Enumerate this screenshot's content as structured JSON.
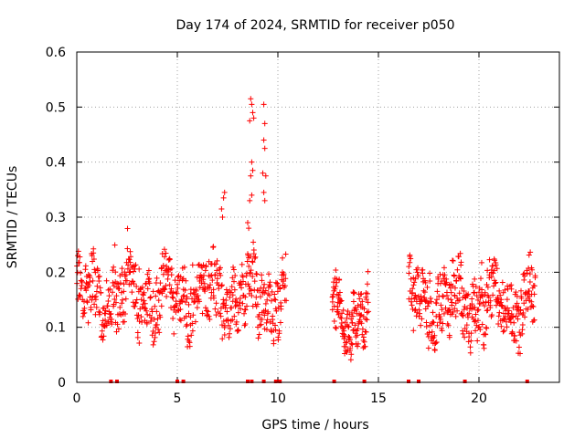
{
  "chart_data": {
    "type": "scatter",
    "title": "Day 174 of 2024, SRMTID for receiver p050",
    "xlabel": "GPS time / hours",
    "ylabel": "SRMTID / TECUs",
    "xlim": [
      0,
      24
    ],
    "ylim": [
      0,
      0.6
    ],
    "xticks": [
      0,
      5,
      10,
      15,
      20
    ],
    "yticks": [
      0,
      0.1,
      0.2,
      0.3,
      0.4,
      0.5,
      0.6
    ],
    "grid": true,
    "marker": "+",
    "color": "#ff0000",
    "segments": [
      {
        "x_start": 0.0,
        "x_end": 10.4,
        "mean": 0.155,
        "amp": 0.05,
        "count": 650
      },
      {
        "x_start": 12.7,
        "x_end": 14.5,
        "mean": 0.12,
        "amp": 0.045,
        "count": 140
      },
      {
        "x_start": 16.5,
        "x_end": 22.8,
        "mean": 0.145,
        "amp": 0.05,
        "count": 430
      }
    ],
    "peaks": [
      {
        "x": 8.65,
        "y": 0.515
      },
      {
        "x": 8.7,
        "y": 0.505
      },
      {
        "x": 8.75,
        "y": 0.49
      },
      {
        "x": 8.6,
        "y": 0.475
      },
      {
        "x": 8.8,
        "y": 0.48
      },
      {
        "x": 8.7,
        "y": 0.4
      },
      {
        "x": 8.75,
        "y": 0.385
      },
      {
        "x": 8.65,
        "y": 0.375
      },
      {
        "x": 8.6,
        "y": 0.33
      },
      {
        "x": 8.7,
        "y": 0.34
      },
      {
        "x": 9.3,
        "y": 0.505
      },
      {
        "x": 9.35,
        "y": 0.47
      },
      {
        "x": 9.3,
        "y": 0.44
      },
      {
        "x": 9.35,
        "y": 0.425
      },
      {
        "x": 9.25,
        "y": 0.38
      },
      {
        "x": 9.4,
        "y": 0.375
      },
      {
        "x": 9.3,
        "y": 0.345
      },
      {
        "x": 9.35,
        "y": 0.33
      },
      {
        "x": 7.35,
        "y": 0.345
      },
      {
        "x": 7.3,
        "y": 0.335
      },
      {
        "x": 7.2,
        "y": 0.315
      },
      {
        "x": 7.25,
        "y": 0.3
      },
      {
        "x": 8.5,
        "y": 0.29
      },
      {
        "x": 8.55,
        "y": 0.28
      }
    ],
    "zero_markers": [
      1.7,
      2.0,
      5.0,
      5.3,
      8.5,
      8.7,
      9.3,
      9.9,
      10.1,
      12.8,
      14.3,
      16.5,
      17.0,
      19.3,
      22.4
    ]
  }
}
